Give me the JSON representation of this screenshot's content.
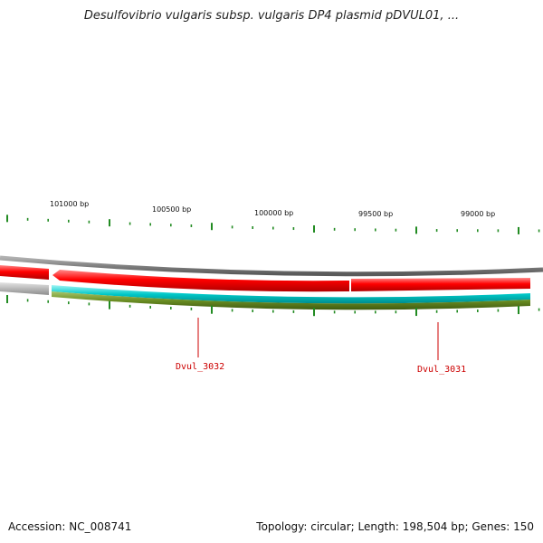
{
  "title": "Desulfovibrio vulgaris subsp. vulgaris DP4 plasmid pDVUL01, ...",
  "footer": {
    "accession": "Accession: NC_008741",
    "stats": "Topology: circular; Length: 198,504 bp; Genes: 150"
  },
  "ruler": {
    "labels": [
      "101000 bp",
      "100500 bp",
      "100000 bp",
      "99500 bp",
      "99000 bp"
    ]
  },
  "genes": [
    {
      "name": "Dvul_3032"
    },
    {
      "name": "Dvul_3031"
    }
  ],
  "colors": {
    "backbone": "#808080",
    "gene_forward": "#ff0000",
    "gene_reverse": "#b8b8b8",
    "track_cyan": "#00c8c8",
    "track_olive": "#6b8e23",
    "ticks": "#228b22",
    "gene_label": "#cc0000"
  }
}
